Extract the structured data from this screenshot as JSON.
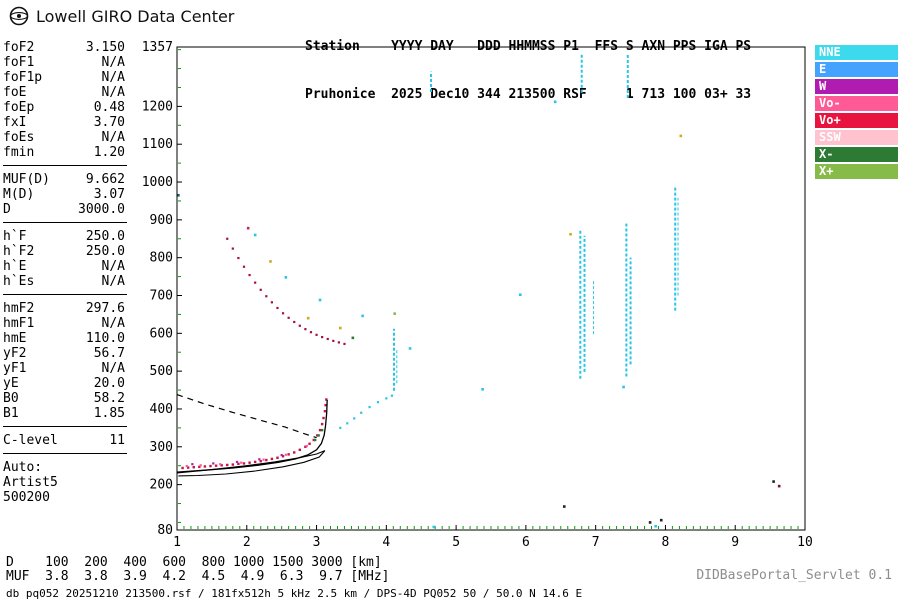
{
  "brand": {
    "name": "Lowell GIRO Data Center"
  },
  "header": {
    "line1": "Station    YYYY DAY   DDD HHMMSS P1  FFS S AXN PPS IGA PS",
    "line2": "Pruhonice  2025 Dec10 344 213500 RSF     1 713 100 03+ 33"
  },
  "param_groups": [
    {
      "rows": [
        {
          "label": "foF2",
          "value": "3.150"
        },
        {
          "label": "foF1",
          "value": "N/A"
        },
        {
          "label": "foF1p",
          "value": "N/A"
        },
        {
          "label": "foE",
          "value": "N/A"
        },
        {
          "label": "foEp",
          "value": "0.48"
        },
        {
          "label": "fxI",
          "value": "3.70"
        },
        {
          "label": "foEs",
          "value": "N/A"
        },
        {
          "label": "fmin",
          "value": "1.20"
        }
      ]
    },
    {
      "rows": [
        {
          "label": "MUF(D)",
          "value": "9.662"
        },
        {
          "label": "M(D)",
          "value": "3.07"
        },
        {
          "label": "D",
          "value": "3000.0"
        }
      ]
    },
    {
      "rows": [
        {
          "label": "h`F",
          "value": "250.0"
        },
        {
          "label": "h`F2",
          "value": "250.0"
        },
        {
          "label": "h`E",
          "value": "N/A"
        },
        {
          "label": "h`Es",
          "value": "N/A"
        }
      ]
    },
    {
      "rows": [
        {
          "label": "hmF2",
          "value": "297.6"
        },
        {
          "label": "hmF1",
          "value": "N/A"
        },
        {
          "label": "hmE",
          "value": "110.0"
        },
        {
          "label": "yF2",
          "value": "56.7"
        },
        {
          "label": "yF1",
          "value": "N/A"
        },
        {
          "label": "yE",
          "value": "20.0"
        },
        {
          "label": "B0",
          "value": "58.2"
        },
        {
          "label": "B1",
          "value": "1.85"
        }
      ]
    },
    {
      "rows": [
        {
          "label": "C-level",
          "value": "11"
        }
      ]
    },
    {
      "rows": [
        {
          "label": "Auto:",
          "value": ""
        },
        {
          "label": "Artist5",
          "value": ""
        },
        {
          "label": "500200",
          "value": ""
        }
      ]
    }
  ],
  "legend": [
    {
      "label": "NNE",
      "color": "#3DD9EC"
    },
    {
      "label": "E",
      "color": "#43A3FF"
    },
    {
      "label": "W",
      "color": "#B01CB0"
    },
    {
      "label": "Vo-",
      "color": "#FF5A96"
    },
    {
      "label": "Vo+",
      "color": "#E8133F"
    },
    {
      "label": "SSW",
      "color": "#FFC2CE"
    },
    {
      "label": "X-",
      "color": "#2D7A35"
    },
    {
      "label": "X+",
      "color": "#86BB4A"
    }
  ],
  "muf_table": {
    "rows": [
      {
        "label": "D",
        "values": [
          "100",
          "200",
          "400",
          "600",
          "800",
          "1000",
          "1500",
          "3000"
        ],
        "unit": "[km]"
      },
      {
        "label": "MUF",
        "values": [
          "3.8",
          "3.8",
          "3.9",
          "4.2",
          "4.5",
          "4.9",
          "6.3",
          "9.7"
        ],
        "unit": "[MHz]"
      }
    ]
  },
  "footer": {
    "status_line": "db pq052 20251210 213500.rsf / 181fx512h 5 kHz 2.5 km / DPS-4D PQ052 50 / 50.0 N 14.6 E",
    "servlet": "DIDBasePortal_Servlet 0.1"
  },
  "chart_data": {
    "type": "scatter",
    "xlabel": "[MHz]",
    "ylabel": "[km]",
    "xlim": [
      1,
      10
    ],
    "ylim": [
      80,
      1357
    ],
    "x_ticks": [
      1,
      2,
      3,
      4,
      5,
      6,
      7,
      8,
      9,
      10
    ],
    "y_ticks": [
      80,
      200,
      300,
      400,
      500,
      600,
      700,
      800,
      900,
      1000,
      1100,
      1200,
      1357
    ],
    "grid": false,
    "minor_tick_color": "#00A000",
    "rfi_color": "#29C5E6",
    "series": [
      {
        "name": "f-trace-o-mode",
        "color": "#C41445",
        "size": 2.4,
        "points": [
          [
            1.08,
            244
          ],
          [
            1.16,
            245
          ],
          [
            1.24,
            246
          ],
          [
            1.32,
            247
          ],
          [
            1.4,
            248
          ],
          [
            1.48,
            249
          ],
          [
            1.56,
            250
          ],
          [
            1.64,
            251
          ],
          [
            1.72,
            252
          ],
          [
            1.8,
            253
          ],
          [
            1.88,
            255
          ],
          [
            1.96,
            256
          ],
          [
            2.04,
            258
          ],
          [
            2.12,
            260
          ],
          [
            2.2,
            262
          ],
          [
            2.28,
            265
          ],
          [
            2.36,
            268
          ],
          [
            2.44,
            271
          ],
          [
            2.52,
            275
          ],
          [
            2.6,
            280
          ],
          [
            2.68,
            285
          ],
          [
            2.76,
            292
          ],
          [
            2.84,
            300
          ],
          [
            2.9,
            308
          ],
          [
            2.96,
            318
          ],
          [
            3.01,
            330
          ],
          [
            3.05,
            344
          ],
          [
            3.08,
            360
          ],
          [
            3.1,
            376
          ],
          [
            3.12,
            394
          ],
          [
            3.13,
            410
          ],
          [
            3.14,
            425
          ]
        ]
      },
      {
        "name": "f-trace-second-order",
        "color": "#A51040",
        "size": 2.2,
        "points": [
          [
            1.72,
            850
          ],
          [
            1.8,
            824
          ],
          [
            1.88,
            799
          ],
          [
            1.96,
            776
          ],
          [
            2.04,
            754
          ],
          [
            2.12,
            734
          ],
          [
            2.2,
            715
          ],
          [
            2.28,
            698
          ],
          [
            2.36,
            682
          ],
          [
            2.44,
            667
          ],
          [
            2.52,
            653
          ],
          [
            2.6,
            641
          ],
          [
            2.68,
            630
          ],
          [
            2.76,
            620
          ],
          [
            2.84,
            611
          ],
          [
            2.92,
            603
          ],
          [
            3.0,
            596
          ],
          [
            3.08,
            590
          ],
          [
            3.16,
            585
          ],
          [
            3.24,
            580
          ],
          [
            3.32,
            576
          ],
          [
            3.4,
            572
          ]
        ]
      },
      {
        "name": "x-mode-trace",
        "color": "#29C5E6",
        "size": 2.2,
        "points": [
          [
            3.34,
            350
          ],
          [
            3.44,
            362
          ],
          [
            3.54,
            375
          ],
          [
            3.64,
            390
          ],
          [
            3.76,
            405
          ],
          [
            3.88,
            418
          ],
          [
            4.0,
            428
          ],
          [
            4.08,
            435
          ]
        ]
      },
      {
        "name": "vo-minus-specks",
        "color": "#FF5A96",
        "size": 2.2,
        "points": [
          [
            1.14,
            249
          ],
          [
            1.34,
            251
          ],
          [
            1.62,
            254
          ],
          [
            1.92,
            258
          ],
          [
            2.24,
            266
          ],
          [
            2.56,
            279
          ],
          [
            2.86,
            302
          ]
        ]
      },
      {
        "name": "w-specks",
        "color": "#B01CB0",
        "size": 2.2,
        "points": [
          [
            1.22,
            254
          ],
          [
            1.52,
            256
          ],
          [
            1.86,
            260
          ],
          [
            2.18,
            267
          ],
          [
            2.5,
            278
          ]
        ]
      },
      {
        "name": "x-minus-cluster",
        "color": "#2D7A35",
        "size": 2.4,
        "points": [
          [
            2.98,
            318
          ],
          [
            3.03,
            330
          ],
          [
            3.08,
            344
          ]
        ]
      }
    ],
    "noise_points": [
      [
        1.02,
        965,
        "#15607A"
      ],
      [
        2.02,
        878,
        "#B03060"
      ],
      [
        2.12,
        860,
        "#29C5E6"
      ],
      [
        2.34,
        790,
        "#CCAA22"
      ],
      [
        2.56,
        748,
        "#29C5E6"
      ],
      [
        2.88,
        640,
        "#CCAA22"
      ],
      [
        3.05,
        688,
        "#29C5E6"
      ],
      [
        3.34,
        614,
        "#CCAA22"
      ],
      [
        3.52,
        588,
        "#2D7A35"
      ],
      [
        3.66,
        646,
        "#29C5E6"
      ],
      [
        4.12,
        652,
        "#86BB4A"
      ],
      [
        4.34,
        560,
        "#29C5E6"
      ],
      [
        4.68,
        88,
        "#29C5E6"
      ],
      [
        5.38,
        452,
        "#29C5E6"
      ],
      [
        5.92,
        702,
        "#29C5E6"
      ],
      [
        6.42,
        1212,
        "#29C5E6"
      ],
      [
        6.55,
        142,
        "#222222"
      ],
      [
        6.64,
        862,
        "#CCAA22"
      ],
      [
        7.4,
        458,
        "#29C5E6"
      ],
      [
        7.78,
        100,
        "#222222"
      ],
      [
        7.86,
        90,
        "#29C5E6"
      ],
      [
        7.94,
        106,
        "#222222"
      ],
      [
        8.22,
        1122,
        "#CCAA22"
      ],
      [
        9.55,
        208,
        "#222222"
      ],
      [
        9.63,
        196,
        "#7A1020"
      ]
    ],
    "rfi_streaks": [
      {
        "f": 4.11,
        "h1": 448,
        "h2": 612,
        "w": 2
      },
      {
        "f": 4.15,
        "h1": 468,
        "h2": 556,
        "w": 1
      },
      {
        "f": 4.64,
        "h1": 1238,
        "h2": 1292,
        "w": 2
      },
      {
        "f": 6.78,
        "h1": 480,
        "h2": 875,
        "w": 2
      },
      {
        "f": 6.84,
        "h1": 498,
        "h2": 858,
        "w": 2
      },
      {
        "f": 6.8,
        "h1": 1236,
        "h2": 1340,
        "w": 2
      },
      {
        "f": 6.97,
        "h1": 598,
        "h2": 742,
        "w": 1
      },
      {
        "f": 7.44,
        "h1": 486,
        "h2": 890,
        "w": 2
      },
      {
        "f": 7.5,
        "h1": 518,
        "h2": 800,
        "w": 2
      },
      {
        "f": 7.46,
        "h1": 1222,
        "h2": 1338,
        "w": 2
      },
      {
        "f": 8.14,
        "h1": 660,
        "h2": 990,
        "w": 2
      },
      {
        "f": 8.18,
        "h1": 700,
        "h2": 958,
        "w": 1
      }
    ],
    "overlays": {
      "dashed": [
        [
          1.0,
          438
        ],
        [
          1.4,
          413
        ],
        [
          1.8,
          391
        ],
        [
          2.2,
          370
        ],
        [
          2.55,
          352
        ],
        [
          2.85,
          333
        ],
        [
          3.0,
          324
        ]
      ],
      "profile": [
        [
          1.0,
          233
        ],
        [
          1.4,
          238
        ],
        [
          1.8,
          244
        ],
        [
          2.15,
          251
        ],
        [
          2.45,
          259
        ],
        [
          2.7,
          268
        ],
        [
          2.88,
          279
        ],
        [
          3.0,
          292
        ],
        [
          3.07,
          309
        ],
        [
          3.11,
          331
        ],
        [
          3.13,
          357
        ],
        [
          3.145,
          390
        ],
        [
          3.152,
          424
        ]
      ],
      "lens": [
        [
          1.0,
          231
        ],
        [
          1.45,
          239
        ],
        [
          1.95,
          249
        ],
        [
          2.4,
          260
        ],
        [
          2.75,
          271
        ],
        [
          3.0,
          281
        ],
        [
          3.12,
          290
        ],
        [
          3.04,
          273
        ],
        [
          2.82,
          259
        ],
        [
          2.52,
          247
        ],
        [
          2.12,
          236
        ],
        [
          1.7,
          228
        ],
        [
          1.3,
          224
        ],
        [
          1.02,
          223
        ]
      ]
    }
  }
}
